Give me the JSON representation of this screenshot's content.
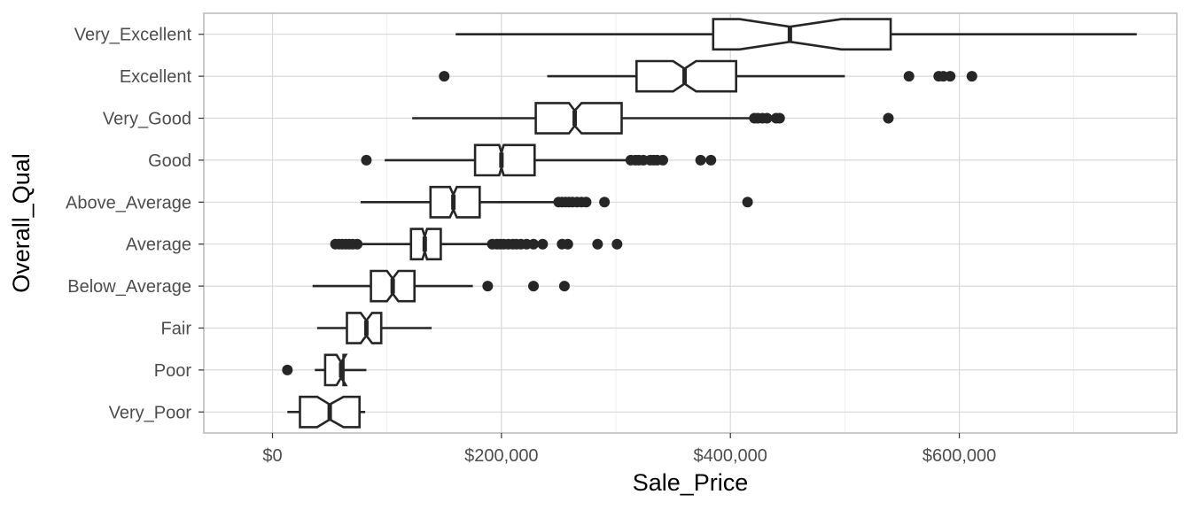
{
  "chart_data": {
    "type": "boxplot",
    "orientation": "horizontal",
    "notched": true,
    "xlabel": "Sale_Price",
    "ylabel": "Overall_Qual",
    "xlim": [
      -60000,
      790000
    ],
    "x_ticks": [
      0,
      200000,
      400000,
      600000
    ],
    "x_tick_labels": [
      "$0",
      "$200,000",
      "$400,000",
      "$600,000"
    ],
    "grid": true,
    "legend": "none",
    "colors": {
      "box_line": "#262626",
      "box_fill": "#ffffff",
      "grid": "#d9d9d9",
      "panel_border": "#b3b3b3"
    },
    "categories": [
      "Very_Excellent",
      "Excellent",
      "Very_Good",
      "Good",
      "Above_Average",
      "Average",
      "Below_Average",
      "Fair",
      "Poor",
      "Very_Poor"
    ],
    "boxes": [
      {
        "category": "Very_Excellent",
        "whisker_low": 160000,
        "q1": 385000,
        "notch_low": 408000,
        "median": 452000,
        "notch_high": 497000,
        "q3": 540000,
        "whisker_high": 755000,
        "outliers": []
      },
      {
        "category": "Excellent",
        "whisker_low": 240000,
        "q1": 318000,
        "notch_low": 350000,
        "median": 360000,
        "notch_high": 370000,
        "q3": 405000,
        "whisker_high": 500000,
        "outliers": [
          150000,
          556000,
          582000,
          586000,
          592000,
          611000
        ]
      },
      {
        "category": "Very_Good",
        "whisker_low": 122000,
        "q1": 230000,
        "notch_low": 259000,
        "median": 264000,
        "notch_high": 270000,
        "q3": 305000,
        "whisker_high": 418000,
        "outliers": [
          421000,
          424000,
          428000,
          432000,
          440000,
          443000,
          538000
        ]
      },
      {
        "category": "Good",
        "whisker_low": 98000,
        "q1": 177000,
        "notch_low": 198000,
        "median": 200000,
        "notch_high": 202000,
        "q3": 229000,
        "whisker_high": 310000,
        "outliers": [
          82000,
          313000,
          317000,
          320000,
          324000,
          330000,
          333000,
          336000,
          341000,
          374000,
          383000
        ]
      },
      {
        "category": "Above_Average",
        "whisker_low": 77000,
        "q1": 138000,
        "notch_low": 155000,
        "median": 158000,
        "notch_high": 161000,
        "q3": 181000,
        "whisker_high": 248000,
        "outliers": [
          250000,
          253000,
          256000,
          259000,
          262000,
          266000,
          270000,
          274000,
          290000,
          415000
        ]
      },
      {
        "category": "Average",
        "whisker_low": 57000,
        "q1": 121000,
        "notch_low": 131000,
        "median": 133000,
        "notch_high": 135000,
        "q3": 147000,
        "whisker_high": 190000,
        "outliers": [
          55000,
          58000,
          61000,
          64000,
          67000,
          70000,
          74000,
          192000,
          196000,
          199000,
          202000,
          206000,
          210000,
          213000,
          217000,
          222000,
          228000,
          236000,
          253000,
          258000,
          284000,
          301000
        ]
      },
      {
        "category": "Below_Average",
        "whisker_low": 35000,
        "q1": 86000,
        "notch_low": 100000,
        "median": 105000,
        "notch_high": 110000,
        "q3": 124000,
        "whisker_high": 175000,
        "outliers": [
          188000,
          228000,
          255000
        ]
      },
      {
        "category": "Fair",
        "whisker_low": 39000,
        "q1": 65000,
        "notch_low": 77000,
        "median": 82000,
        "notch_high": 87000,
        "q3": 95000,
        "whisker_high": 139000,
        "outliers": []
      },
      {
        "category": "Poor",
        "whisker_low": 37000,
        "q1": 46000,
        "notch_low": 56000,
        "median": 60000,
        "notch_high": 64000,
        "q3": 62000,
        "whisker_high": 82000,
        "outliers": [
          13000
        ]
      },
      {
        "category": "Very_Poor",
        "whisker_low": 13000,
        "q1": 24000,
        "notch_low": 39000,
        "median": 50000,
        "notch_high": 62000,
        "q3": 76000,
        "whisker_high": 81000,
        "outliers": []
      }
    ]
  }
}
